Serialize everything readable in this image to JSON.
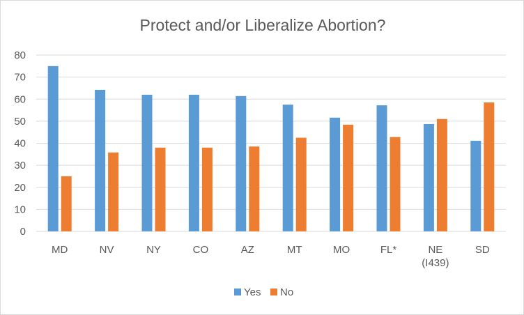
{
  "chart_data": {
    "type": "bar",
    "title": "Protect and/or Liberalize Abortion?",
    "categories": [
      [
        "MD"
      ],
      [
        "NV"
      ],
      [
        "NY"
      ],
      [
        "CO"
      ],
      [
        "AZ"
      ],
      [
        "MT"
      ],
      [
        "MO"
      ],
      [
        "FL*"
      ],
      [
        "NE",
        "(I439)"
      ],
      [
        "SD"
      ]
    ],
    "series": [
      {
        "name": "Yes",
        "color": "#5b9bd5",
        "values": [
          75,
          64.2,
          62,
          62,
          61.4,
          57.5,
          51.6,
          57.2,
          48.7,
          41.1
        ]
      },
      {
        "name": "No",
        "color": "#ed7d31",
        "values": [
          25,
          35.8,
          38,
          38,
          38.5,
          42.5,
          48.4,
          42.8,
          51,
          58.5
        ]
      }
    ],
    "ylim": [
      0,
      80
    ],
    "yticks": [
      0,
      10,
      20,
      30,
      40,
      50,
      60,
      70,
      80
    ],
    "grid": true,
    "legend": "bottom",
    "xlabel": "",
    "ylabel": ""
  }
}
